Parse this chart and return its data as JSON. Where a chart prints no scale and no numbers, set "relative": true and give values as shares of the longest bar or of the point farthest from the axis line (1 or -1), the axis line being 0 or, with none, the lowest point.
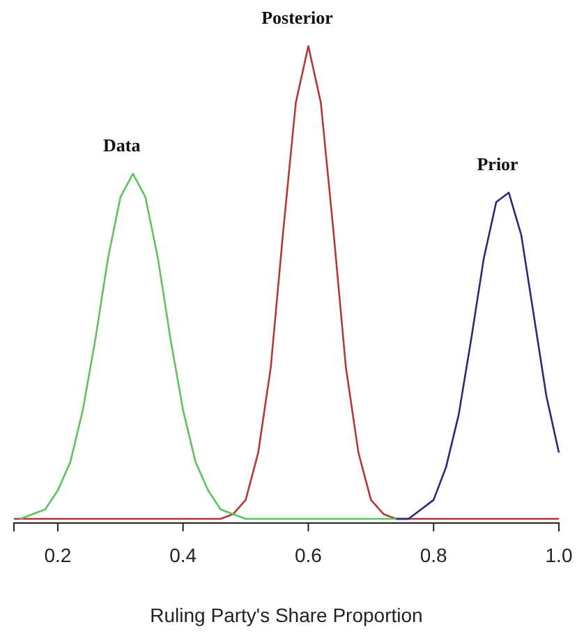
{
  "chart_data": {
    "type": "line",
    "relative": true,
    "xlabel": "Ruling Party's Share Proportion",
    "xlim": [
      0.13,
      1.0
    ],
    "xticks": [
      {
        "value": 0.2,
        "label": "0.2"
      },
      {
        "value": 0.4,
        "label": "0.4"
      },
      {
        "value": 0.6,
        "label": "0.6"
      },
      {
        "value": 0.8,
        "label": "0.8"
      },
      {
        "value": 1.0,
        "label": "1.0"
      }
    ],
    "series": [
      {
        "name": "Posterior",
        "color": "#b03a3a",
        "x": [
          0.13,
          0.46,
          0.48,
          0.5,
          0.52,
          0.54,
          0.56,
          0.58,
          0.6,
          0.62,
          0.64,
          0.66,
          0.68,
          0.7,
          0.72,
          0.74,
          1.0
        ],
        "values": [
          0,
          0,
          0.01,
          0.04,
          0.14,
          0.32,
          0.61,
          0.88,
          1,
          0.88,
          0.61,
          0.32,
          0.14,
          0.04,
          0.01,
          0,
          0
        ]
      },
      {
        "name": "Data",
        "color": "#5ec25e",
        "x": [
          0.14,
          0.16,
          0.18,
          0.2,
          0.22,
          0.24,
          0.26,
          0.28,
          0.3,
          0.32,
          0.34,
          0.36,
          0.38,
          0.4,
          0.42,
          0.44,
          0.46,
          0.48,
          0.5,
          0.76
        ],
        "values": [
          0,
          0.01,
          0.02,
          0.06,
          0.12,
          0.23,
          0.38,
          0.55,
          0.68,
          0.73,
          0.68,
          0.55,
          0.38,
          0.23,
          0.12,
          0.06,
          0.02,
          0.01,
          0,
          0
        ]
      },
      {
        "name": "Prior",
        "color": "#2a2a7a",
        "x": [
          0.74,
          0.76,
          0.78,
          0.8,
          0.82,
          0.84,
          0.86,
          0.88,
          0.9,
          0.92,
          0.94,
          0.96,
          0.98,
          1.0
        ],
        "values": [
          0,
          0,
          0.02,
          0.04,
          0.11,
          0.22,
          0.38,
          0.55,
          0.67,
          0.69,
          0.6,
          0.43,
          0.26,
          0.14
        ]
      }
    ]
  }
}
